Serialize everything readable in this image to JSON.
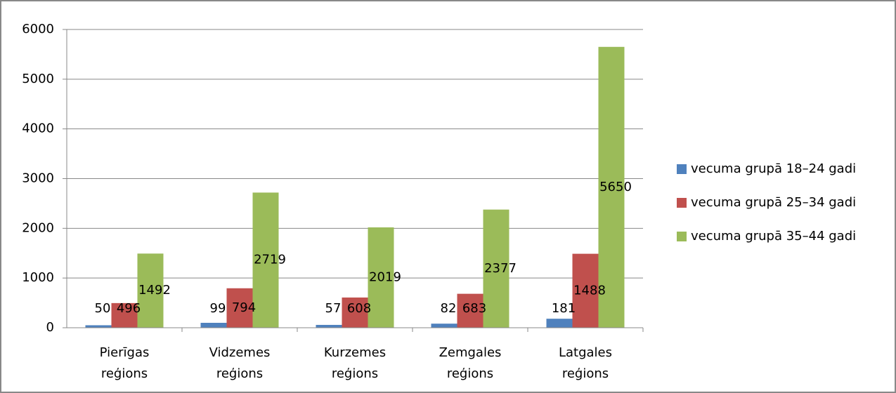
{
  "chart_data": {
    "type": "bar",
    "categories": [
      "Pierīgas reģions",
      "Vidzemes reģions",
      "Kurzemes reģions",
      "Zemgales reģions",
      "Latgales reģions"
    ],
    "series": [
      {
        "name": "vecuma grupā 18–24 gadi",
        "color": "#4f81bd",
        "values": [
          50,
          99,
          57,
          82,
          181
        ]
      },
      {
        "name": "vecuma grupā 25–34 gadi",
        "color": "#c0504d",
        "values": [
          496,
          794,
          608,
          683,
          1488
        ]
      },
      {
        "name": "vecuma grupā 35–44 gadi",
        "color": "#9bbb59",
        "values": [
          1492,
          2719,
          2019,
          2377,
          5650
        ]
      }
    ],
    "ylim": [
      0,
      6000
    ],
    "yticks": [
      0,
      1000,
      2000,
      3000,
      4000,
      5000,
      6000
    ],
    "grid": true,
    "legend": "right"
  }
}
